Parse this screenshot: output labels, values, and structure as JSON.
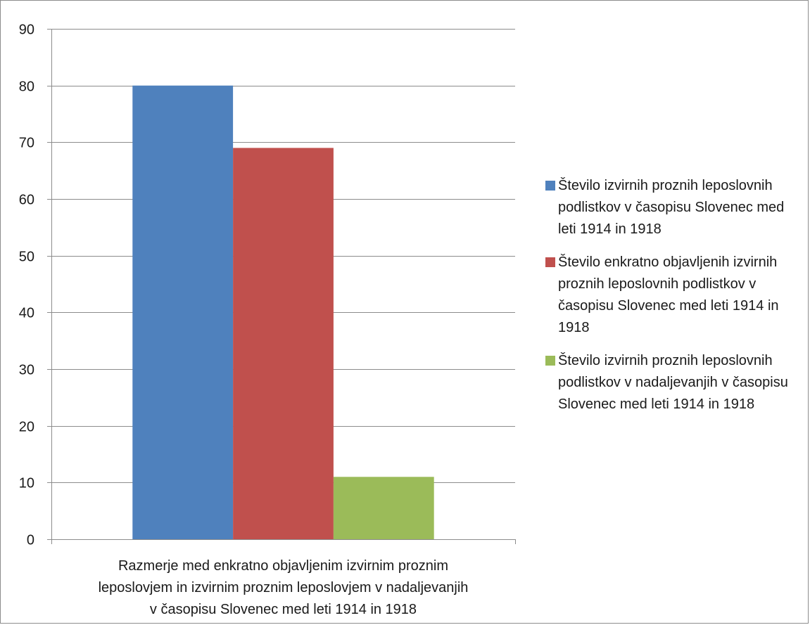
{
  "chart_data": {
    "type": "bar",
    "title": "",
    "ylabel": "",
    "ylim": [
      0,
      90
    ],
    "yticks": [
      0,
      10,
      20,
      30,
      40,
      50,
      60,
      70,
      80,
      90
    ],
    "categories": [
      "Razmerje med enkratno objavljenim izvirnim proznim leposlovjem in izvirnim proznim leposlovjem v nadaljevanjih v časopisu Slovenec med leti 1914 in 1918"
    ],
    "category_label_lines": [
      "Razmerje med enkratno objavljenim izvirnim proznim",
      "leposlovjem in izvirnim proznim leposlovjem v nadaljevanjih",
      "v časopisu Slovenec med leti 1914 in 1918"
    ],
    "grid": true,
    "legend_position": "right",
    "series": [
      {
        "name": "Število izvirnih proznih leposlovnih podlistkov v časopisu Slovenec med leti 1914 in 1918",
        "values": [
          80
        ],
        "color": "#4f81bd"
      },
      {
        "name": "Število enkratno objavljenih izvirnih proznih leposlovnih podlistkov v časopisu Slovenec med leti 1914 in 1918",
        "values": [
          69
        ],
        "color": "#c0504d"
      },
      {
        "name": "Število izvirnih proznih leposlovnih podlistkov v nadaljevanjih v časopisu Slovenec med leti 1914 in 1918",
        "values": [
          11
        ],
        "color": "#9bbb59"
      }
    ]
  }
}
